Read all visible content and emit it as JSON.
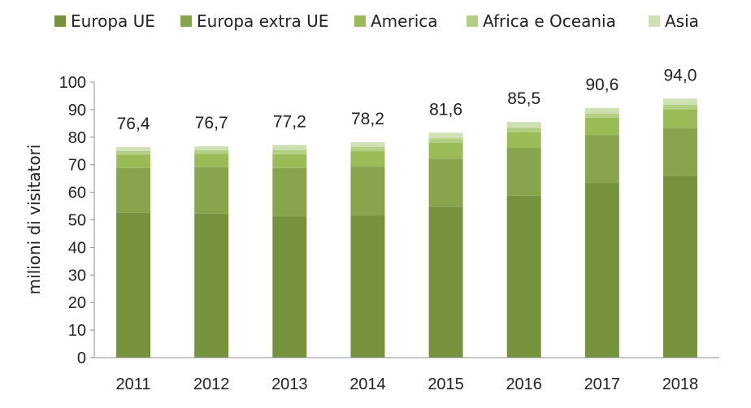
{
  "chart_data": {
    "type": "bar",
    "stacked": true,
    "categories": [
      "2011",
      "2012",
      "2013",
      "2014",
      "2015",
      "2016",
      "2017",
      "2018"
    ],
    "series": [
      {
        "name": "Europa UE",
        "color": "#76923c",
        "values": [
          52.6,
          52.3,
          51.2,
          51.6,
          54.8,
          58.8,
          63.4,
          66.0
        ]
      },
      {
        "name": "Europa extra UE",
        "color": "#88a44c",
        "values": [
          16.2,
          16.8,
          17.6,
          17.7,
          17.4,
          17.3,
          17.4,
          17.4
        ]
      },
      {
        "name": "America",
        "color": "#9bbb59",
        "values": [
          4.8,
          4.8,
          5.0,
          5.6,
          5.8,
          5.8,
          6.3,
          6.8
        ]
      },
      {
        "name": "Africa e Oceania",
        "color": "#b3cf83",
        "values": [
          1.4,
          1.4,
          1.6,
          1.6,
          1.6,
          1.6,
          1.5,
          1.6
        ]
      },
      {
        "name": "Asia",
        "color": "#cfe0b2",
        "values": [
          1.4,
          1.4,
          1.8,
          1.7,
          2.0,
          2.0,
          2.0,
          2.2
        ]
      }
    ],
    "totals": [
      "76,4",
      "76,7",
      "77,2",
      "78,2",
      "81,6",
      "85,5",
      "90,6",
      "94,0"
    ],
    "ylabel": "milioni di visitatori",
    "xlabel": "",
    "ylim": [
      0,
      100
    ],
    "yticks": [
      0,
      10,
      20,
      30,
      40,
      50,
      60,
      70,
      80,
      90,
      100
    ],
    "grid": false,
    "legend_position": "top"
  }
}
